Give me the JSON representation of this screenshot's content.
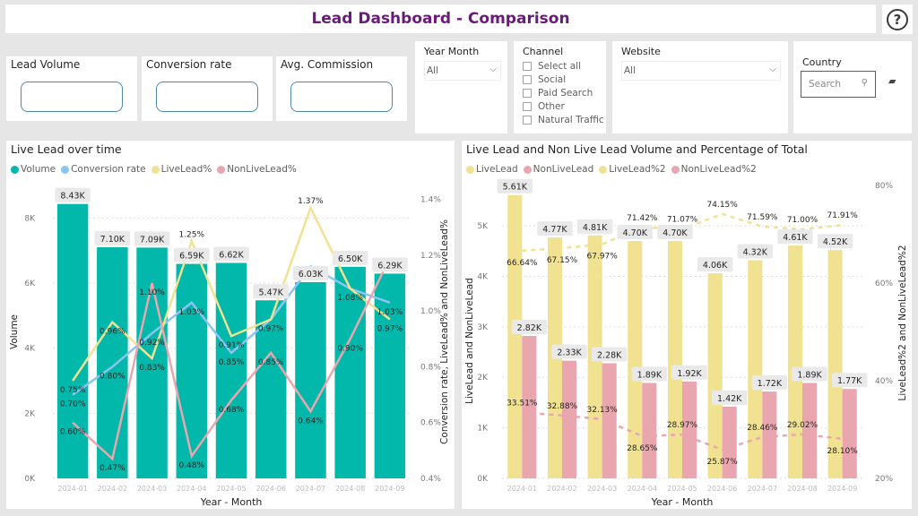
{
  "header": {
    "title": "Lead Dashboard - Comparison",
    "help_icon": "question-circle-icon"
  },
  "kpis": [
    {
      "label": "Lead Volume",
      "value": ""
    },
    {
      "label": "Conversion rate",
      "value": ""
    },
    {
      "label": "Avg. Commission",
      "value": ""
    }
  ],
  "slicers": {
    "year_month": {
      "label": "Year Month",
      "selected": "All"
    },
    "channel": {
      "label": "Channel",
      "options": [
        "Select all",
        "Social",
        "Paid Search",
        "Other",
        "Natural Traffic"
      ]
    },
    "website": {
      "label": "Website",
      "selected": "All"
    },
    "country": {
      "label": "Country",
      "search_placeholder": "Search"
    }
  },
  "chart_data": [
    {
      "type": "bar",
      "title": "Live Lead over time",
      "xlabel": "Year - Month",
      "ylabel": "Volume",
      "y2label": "Conversion rate, LiveLead% and NonLiveLead%",
      "ylim": [
        0,
        9000
      ],
      "y2lim": [
        0.4,
        1.45
      ],
      "yticks": [
        "0K",
        "2K",
        "4K",
        "6K",
        "8K"
      ],
      "y2ticks": [
        "0.4%",
        "0.6%",
        "0.8%",
        "1.0%",
        "1.2%",
        "1.4%"
      ],
      "categories": [
        "2024-01",
        "2024-02",
        "2024-03",
        "2024-04",
        "2024-05",
        "2024-06",
        "2024-07",
        "2024-08",
        "2024-09"
      ],
      "legend": [
        {
          "name": "Volume",
          "color": "#01b8aa"
        },
        {
          "name": "Conversion rate",
          "color": "#8ac5f2"
        },
        {
          "name": "LiveLead%",
          "color": "#f0e290"
        },
        {
          "name": "NonLiveLead%",
          "color": "#eaa6ae"
        }
      ],
      "series": [
        {
          "name": "Volume",
          "kind": "bar",
          "values": [
            8430,
            7100,
            7090,
            6590,
            6620,
            5470,
            6030,
            6500,
            6290
          ],
          "labels": [
            "8.43K",
            "7.10K",
            "7.09K",
            "6.59K",
            "6.62K",
            "5.47K",
            "6.03K",
            "6.50K",
            "6.29K"
          ]
        },
        {
          "name": "Conversion rate",
          "kind": "line",
          "values": [
            0.7,
            0.8,
            0.92,
            1.03,
            0.85,
            0.97,
            1.16,
            1.08,
            1.03
          ],
          "labels": [
            "0.70%",
            "0.80%",
            "0.92%",
            "1.03%",
            "0.85%",
            "0.97%",
            "1.16%",
            "1.08%",
            "1.03%"
          ]
        },
        {
          "name": "LiveLead%",
          "kind": "line",
          "values": [
            0.75,
            0.96,
            0.83,
            1.25,
            0.91,
            0.97,
            1.37,
            1.08,
            0.97
          ],
          "labels": [
            "0.75%",
            "0.96%",
            "0.83%",
            "1.25%",
            "0.91%",
            "",
            "1.37%",
            "",
            "0.97%"
          ]
        },
        {
          "name": "NonLiveLead%",
          "kind": "line",
          "values": [
            0.6,
            0.47,
            1.1,
            0.48,
            0.68,
            0.85,
            0.64,
            0.9,
            1.19
          ],
          "labels": [
            "0.60%",
            "0.47%",
            "1.10%",
            "0.48%",
            "0.68%",
            "0.85%",
            "0.64%",
            "0.90%",
            "1.19%"
          ]
        }
      ]
    },
    {
      "type": "bar",
      "title": "Live Lead and Non Live Lead Volume and Percentage of Total",
      "xlabel": "Year - Month",
      "ylabel": "LiveLead and NonLiveLead",
      "y2label": "LiveLead%2 and NonLiveLead%2",
      "ylim": [
        0,
        5800
      ],
      "y2lim": [
        20,
        80
      ],
      "yticks": [
        "0K",
        "1K",
        "2K",
        "3K",
        "4K",
        "5K"
      ],
      "y2ticks": [
        "20%",
        "40%",
        "60%",
        "80%"
      ],
      "categories": [
        "2024-01",
        "2024-02",
        "2024-03",
        "2024-04",
        "2024-05",
        "2024-06",
        "2024-07",
        "2024-08",
        "2024-09"
      ],
      "legend": [
        {
          "name": "LiveLead",
          "color": "#f0e290"
        },
        {
          "name": "NonLiveLead",
          "color": "#eaa6ae"
        },
        {
          "name": "LiveLead%2",
          "color": "#f0e290"
        },
        {
          "name": "NonLiveLead%2",
          "color": "#eaa6ae"
        }
      ],
      "series": [
        {
          "name": "LiveLead",
          "kind": "bar",
          "values": [
            5610,
            4770,
            4810,
            4700,
            4700,
            4060,
            4320,
            4610,
            4520
          ],
          "labels": [
            "5.61K",
            "4.77K",
            "4.81K",
            "4.70K",
            "4.70K",
            "4.06K",
            "4.32K",
            "4.61K",
            "4.52K"
          ]
        },
        {
          "name": "NonLiveLead",
          "kind": "bar",
          "values": [
            2820,
            2330,
            2280,
            1890,
            1920,
            1420,
            1720,
            1890,
            1770
          ],
          "labels": [
            "2.82K",
            "2.33K",
            "2.28K",
            "1.89K",
            "1.92K",
            "1.42K",
            "1.72K",
            "1.89K",
            "1.77K"
          ]
        },
        {
          "name": "LiveLead%2",
          "kind": "dashed-line",
          "values": [
            66.64,
            67.15,
            67.97,
            71.42,
            71.07,
            74.15,
            71.59,
            71.0,
            71.91
          ],
          "labels": [
            "66.64%",
            "67.15%",
            "67.97%",
            "71.42%",
            "71.07%",
            "74.15%",
            "71.59%",
            "71.00%",
            "71.91%"
          ]
        },
        {
          "name": "NonLiveLead%2",
          "kind": "dashed-line",
          "values": [
            33.51,
            32.88,
            32.13,
            28.65,
            28.97,
            25.87,
            28.46,
            29.02,
            28.1
          ],
          "labels": [
            "33.51%",
            "32.88%",
            "32.13%",
            "28.65%",
            "28.97%",
            "25.87%",
            "28.46%",
            "29.02%",
            "28.10%"
          ]
        }
      ]
    }
  ]
}
